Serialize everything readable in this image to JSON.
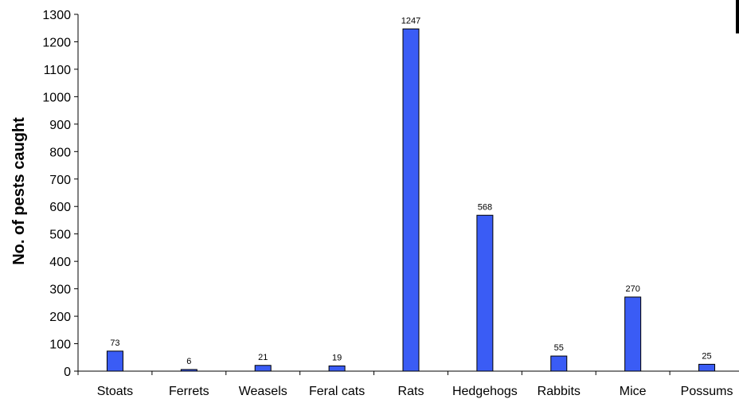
{
  "chart_data": {
    "type": "bar",
    "ylabel": "No. of pests caught",
    "xlabel": "",
    "categories": [
      "Stoats",
      "Ferrets",
      "Weasels",
      "Feral cats",
      "Rats",
      "Hedgehogs",
      "Rabbits",
      "Mice",
      "Possums"
    ],
    "values": [
      73,
      6,
      21,
      19,
      1247,
      568,
      55,
      270,
      25
    ],
    "data_labels": [
      "73",
      "6",
      "21",
      "19",
      "1247",
      "568",
      "55",
      "270",
      "25"
    ],
    "ylim": [
      0,
      1300
    ],
    "yticks": [
      0,
      100,
      200,
      300,
      400,
      500,
      600,
      700,
      800,
      900,
      1000,
      1100,
      1200,
      1300
    ],
    "bar_color": "#3a5cf5",
    "bar_edge_color": "#000000",
    "grid": false,
    "legend": "none"
  }
}
